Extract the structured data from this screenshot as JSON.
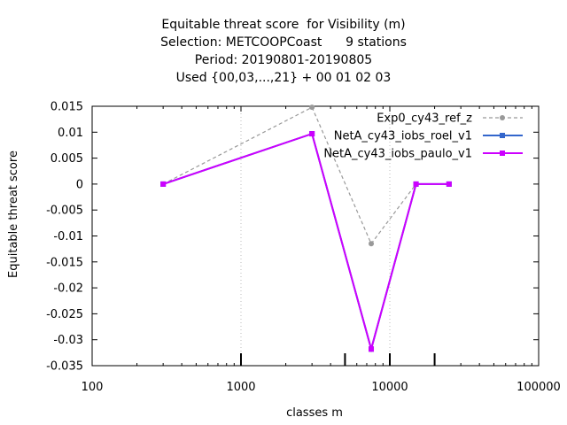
{
  "chart_data": {
    "type": "line",
    "title_lines": [
      "Equitable threat score  for Visibility (m)",
      "Selection: METCOOPCoast      9 stations",
      "Period: 20190801-20190805",
      "Used {00,03,...,21} + 00 01 02 03"
    ],
    "xlabel": "classes m",
    "ylabel": "Equitable threat score",
    "xscale": "log",
    "xlim": [
      100,
      100000
    ],
    "ylim": [
      -0.035,
      0.015
    ],
    "xticks": [
      100,
      1000,
      10000,
      100000
    ],
    "xtick_labels": [
      "100",
      "1000",
      "10000",
      "100000"
    ],
    "yticks": [
      0.015,
      0.01,
      0.005,
      0,
      -0.005,
      -0.01,
      -0.015,
      -0.02,
      -0.025,
      -0.03,
      -0.035
    ],
    "ytick_labels": [
      "0.015",
      "0.01",
      "0.005",
      "0",
      "-0.005",
      "-0.01",
      "-0.015",
      "-0.02",
      "-0.025",
      "-0.03",
      "-0.035"
    ],
    "grid": "vertical dashed at decades",
    "legend_position": "top-right",
    "class_markers_x": [
      1000,
      5000,
      10000,
      20000
    ],
    "series": [
      {
        "name": "Exp0_cy43_ref_z",
        "color": "#999999",
        "style": "dashed",
        "marker": "circle",
        "x": [
          300,
          3000,
          7500,
          15000,
          25000
        ],
        "y": [
          0.0,
          0.0148,
          -0.0115,
          0.0,
          0.0
        ]
      },
      {
        "name": "NetA_cy43_iobs_roel_v1",
        "color": "#3366cc",
        "style": "solid",
        "marker": "square",
        "x": [
          300,
          3000,
          7500,
          15000,
          25000
        ],
        "y": [
          0.0,
          0.0097,
          -0.0318,
          0.0,
          0.0
        ]
      },
      {
        "name": "NetA_cy43_iobs_paulo_v1",
        "color": "#cc00ff",
        "style": "solid",
        "marker": "square",
        "x": [
          300,
          3000,
          7500,
          15000,
          25000
        ],
        "y": [
          0.0,
          0.0097,
          -0.0318,
          0.0,
          0.0
        ]
      }
    ]
  }
}
